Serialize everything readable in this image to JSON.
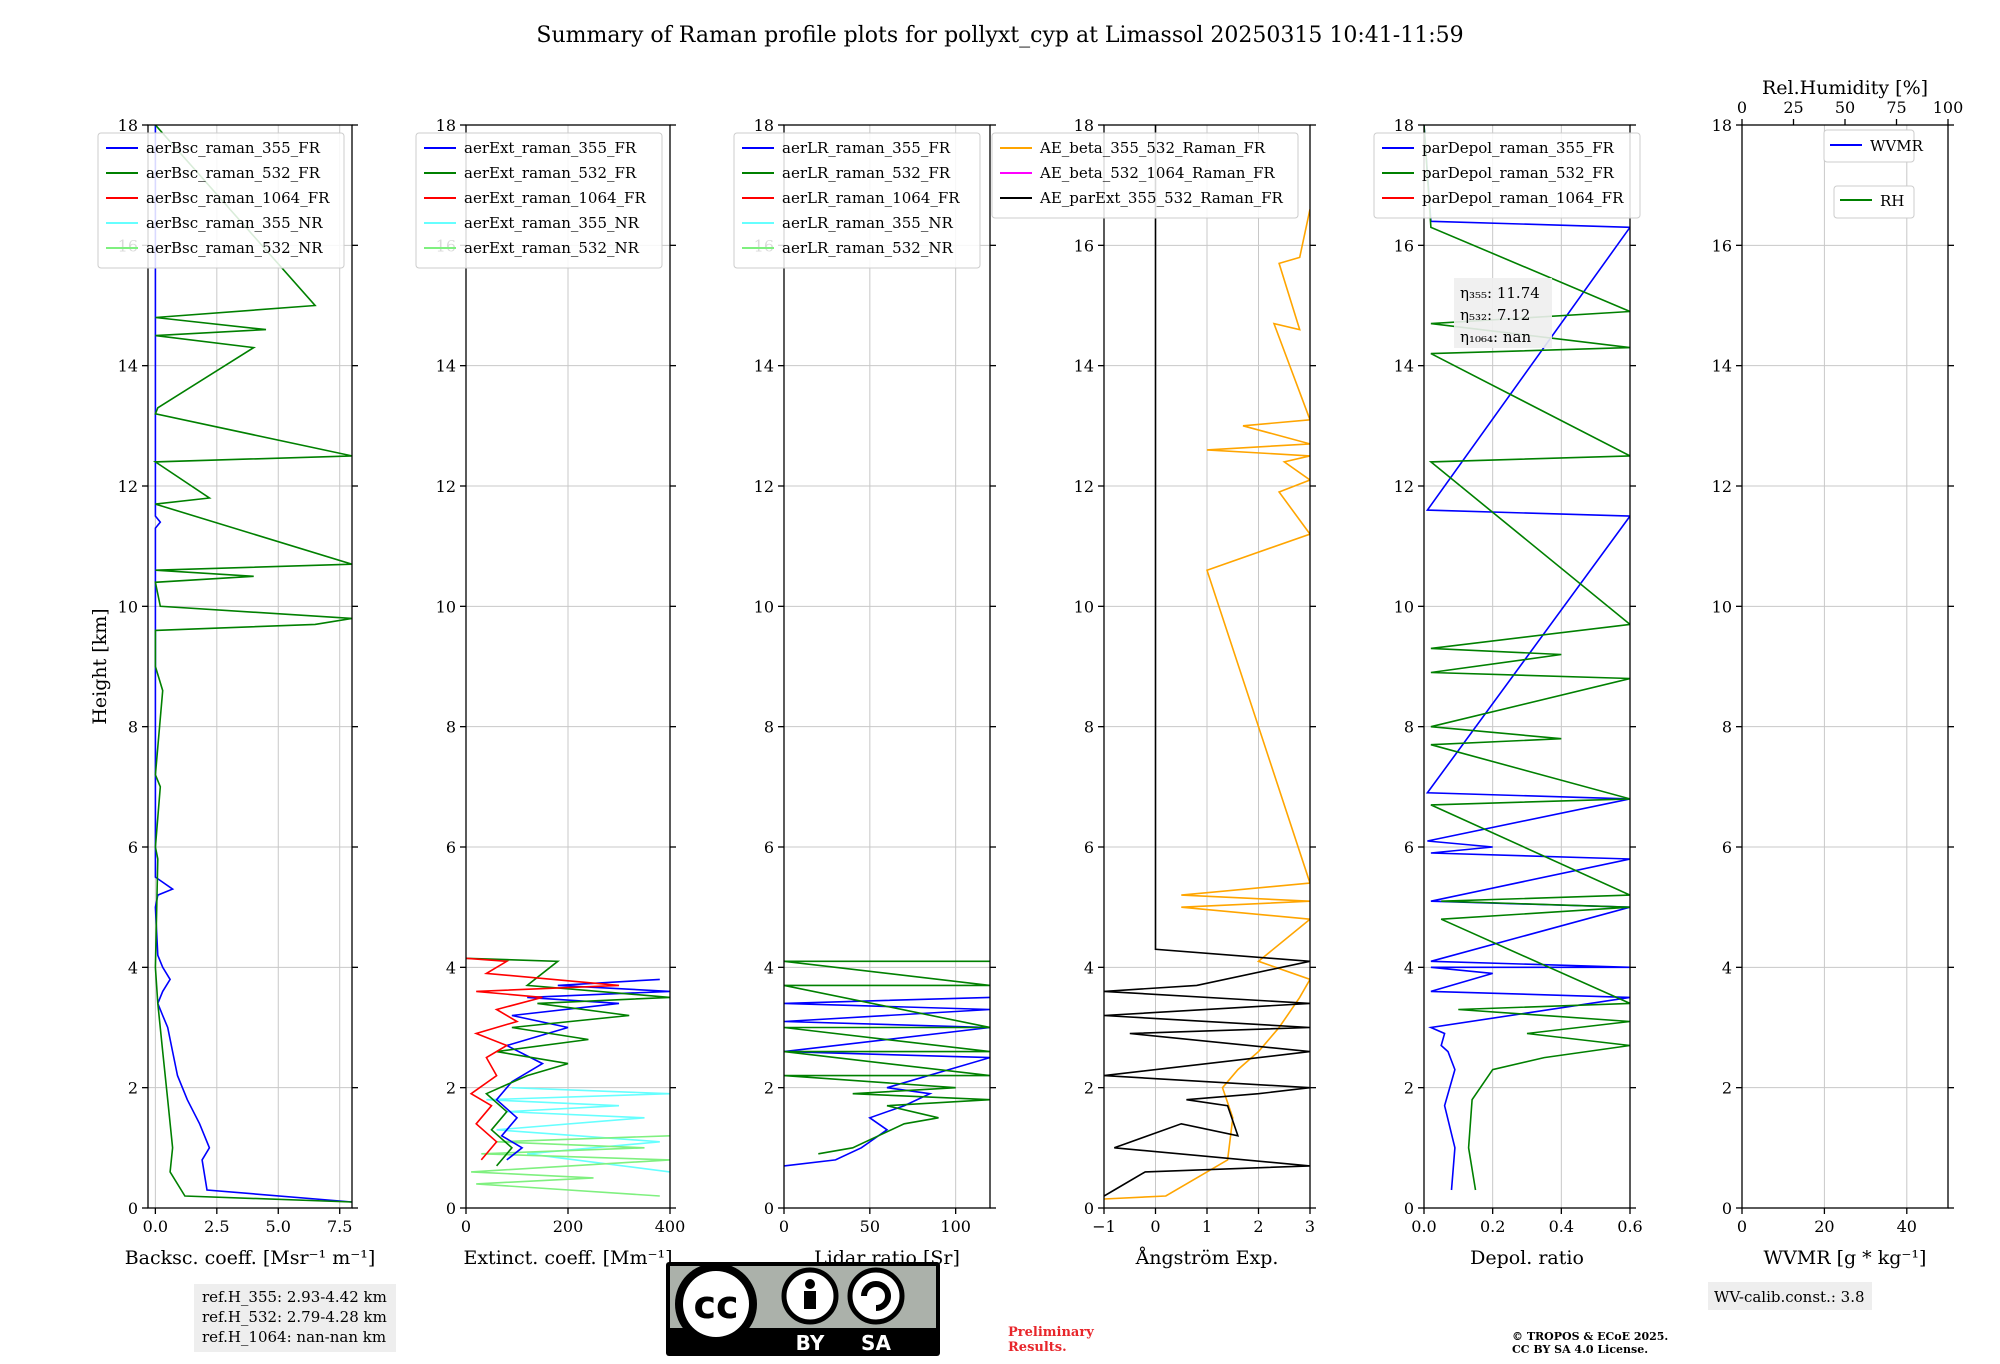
{
  "figure_title": "Summary of Raman profile plots for pollyxt_cyp at Limassol 20250315 10:41-11:59",
  "chart_data": [
    {
      "type": "line",
      "panel": "backscatter",
      "xlabel": "Backsc. coeff. [Msr⁻¹ m⁻¹]",
      "ylabel": "Height [km]",
      "xlim": [
        -0.3,
        8.0
      ],
      "ylim": [
        0,
        18
      ],
      "xticks": [
        "0.0",
        "2.5",
        "5.0",
        "7.5"
      ],
      "xtick_values": [
        0,
        2.5,
        5,
        7.5
      ],
      "legend": [
        "aerBsc_raman_355_FR",
        "aerBsc_raman_532_FR",
        "aerBsc_raman_1064_FR",
        "aerBsc_raman_355_NR",
        "aerBsc_raman_532_NR"
      ],
      "series": [
        {
          "name": "aerBsc_raman_355_FR",
          "color": "#0000ff",
          "x": [
            8.0,
            2.1,
            1.9,
            2.2,
            1.8,
            1.3,
            0.9,
            0.7,
            0.5,
            0.3,
            0.1,
            0.3,
            0.6,
            0.3,
            0.1,
            0.0,
            0.1,
            0.7,
            0.0,
            0.0,
            0.0,
            0.2,
            0.0,
            0.0
          ],
          "y": [
            0.1,
            0.3,
            0.8,
            1.0,
            1.4,
            1.8,
            2.2,
            2.6,
            3.0,
            3.2,
            3.4,
            3.6,
            3.8,
            4.0,
            4.2,
            5.0,
            5.2,
            5.3,
            5.5,
            8.0,
            11.3,
            11.4,
            11.5,
            18
          ]
        },
        {
          "name": "aerBsc_raman_532_FR",
          "color": "#008000",
          "x": [
            8.0,
            1.2,
            0.6,
            0.7,
            0.5,
            0.3,
            0.1,
            0.0,
            0.1,
            0.0,
            0.2,
            0.0,
            0.3,
            0.0,
            0.0,
            6.5,
            8.0,
            0.2,
            0.0,
            4.0,
            0.0,
            8.0,
            0.0,
            2.2,
            0.0,
            8.0,
            0.0,
            0.1,
            4.0,
            0.0,
            4.5,
            0.0,
            6.5,
            0.0
          ],
          "y": [
            0.1,
            0.2,
            0.6,
            1.0,
            1.8,
            2.6,
            3.4,
            4.0,
            5.8,
            6.0,
            7.0,
            7.2,
            8.6,
            9.0,
            9.6,
            9.7,
            9.8,
            10.0,
            10.4,
            10.5,
            10.6,
            10.7,
            11.7,
            11.8,
            12.4,
            12.5,
            13.2,
            13.3,
            14.3,
            14.5,
            14.6,
            14.8,
            15.0,
            18
          ]
        }
      ]
    },
    {
      "type": "line",
      "panel": "extinction",
      "xlabel": "Extinct. coeff. [Mm⁻¹]",
      "xlim": [
        0,
        400
      ],
      "ylim": [
        0,
        18
      ],
      "xticks": [
        "0",
        "200",
        "400"
      ],
      "xtick_values": [
        0,
        200,
        400
      ],
      "legend": [
        "aerExt_raman_355_FR",
        "aerExt_raman_532_FR",
        "aerExt_raman_1064_FR",
        "aerExt_raman_355_NR",
        "aerExt_raman_532_NR"
      ],
      "series": [
        {
          "name": "aerExt_raman_355_NR",
          "color": "#66ffff",
          "x": [
            400,
            120,
            380,
            60,
            350,
            80,
            300,
            40,
            400,
            90
          ],
          "y": [
            0.6,
            0.9,
            1.1,
            1.3,
            1.5,
            1.6,
            1.7,
            1.8,
            1.9,
            2.0
          ]
        },
        {
          "name": "aerExt_raman_532_NR",
          "color": "#7ff07f",
          "x": [
            380,
            20,
            250,
            10,
            400,
            30,
            350,
            60,
            400
          ],
          "y": [
            0.2,
            0.4,
            0.5,
            0.6,
            0.8,
            0.9,
            1.0,
            1.1,
            1.2
          ]
        },
        {
          "name": "aerExt_raman_355_FR",
          "color": "#0000ff",
          "x": [
            80,
            110,
            70,
            100,
            60,
            90,
            150,
            80,
            200,
            90,
            300,
            120,
            400,
            180,
            380
          ],
          "y": [
            0.8,
            1.0,
            1.2,
            1.5,
            1.8,
            2.1,
            2.4,
            2.7,
            3.0,
            3.2,
            3.4,
            3.5,
            3.6,
            3.7,
            3.8
          ]
        },
        {
          "name": "aerExt_raman_532_FR",
          "color": "#008000",
          "x": [
            60,
            90,
            50,
            80,
            40,
            120,
            200,
            60,
            240,
            90,
            320,
            140,
            400,
            120,
            180,
            0
          ],
          "y": [
            0.7,
            1.0,
            1.3,
            1.6,
            1.9,
            2.2,
            2.4,
            2.6,
            2.8,
            3.0,
            3.2,
            3.4,
            3.5,
            3.7,
            4.1,
            4.15
          ]
        },
        {
          "name": "aerExt_raman_1064_FR",
          "color": "#ff0000",
          "x": [
            30,
            60,
            20,
            50,
            10,
            60,
            40,
            80,
            20,
            100,
            60,
            150,
            20,
            300,
            40,
            80,
            0
          ],
          "y": [
            0.8,
            1.1,
            1.4,
            1.7,
            1.9,
            2.2,
            2.5,
            2.7,
            2.9,
            3.1,
            3.3,
            3.5,
            3.6,
            3.7,
            3.9,
            4.1,
            4.15
          ]
        }
      ]
    },
    {
      "type": "line",
      "panel": "lidar_ratio",
      "xlabel": "Lidar ratio [Sr]",
      "xlim": [
        0,
        120
      ],
      "ylim": [
        0,
        18
      ],
      "xticks": [
        "0",
        "50",
        "100"
      ],
      "xtick_values": [
        0,
        50,
        100
      ],
      "legend": [
        "aerLR_raman_355_FR",
        "aerLR_raman_532_FR",
        "aerLR_raman_1064_FR",
        "aerLR_raman_355_NR",
        "aerLR_raman_532_NR"
      ],
      "series": [
        {
          "name": "aerLR_raman_355_FR",
          "color": "#0000ff",
          "x": [
            0,
            30,
            45,
            60,
            50,
            70,
            85,
            60,
            120,
            0,
            120,
            0,
            120,
            0,
            120
          ],
          "y": [
            0.7,
            0.8,
            1.0,
            1.3,
            1.5,
            1.7,
            1.9,
            2.0,
            2.5,
            2.6,
            3.0,
            3.1,
            3.3,
            3.4,
            3.5
          ]
        },
        {
          "name": "aerLR_raman_532_FR",
          "color": "#008000",
          "x": [
            20,
            40,
            55,
            70,
            90,
            60,
            120,
            40,
            100,
            0,
            120,
            0,
            120,
            0,
            120,
            0,
            120,
            0,
            120
          ],
          "y": [
            0.9,
            1.0,
            1.2,
            1.4,
            1.5,
            1.7,
            1.8,
            1.9,
            2.0,
            2.2,
            2.2,
            2.6,
            2.6,
            3.0,
            3.0,
            3.7,
            3.7,
            4.1,
            4.1
          ]
        }
      ]
    },
    {
      "type": "line",
      "panel": "angstrom",
      "xlabel": "Ångström Exp.",
      "xlim": [
        -1,
        3
      ],
      "ylim": [
        0,
        18
      ],
      "xticks": [
        "−1",
        "0",
        "1",
        "2",
        "3"
      ],
      "xtick_values": [
        -1,
        0,
        1,
        2,
        3
      ],
      "legend": [
        "AE_beta_355_532_Raman_FR",
        "AE_beta_532_1064_Raman_FR",
        "AE_parExt_355_532_Raman_FR"
      ],
      "series": [
        {
          "name": "AE_beta_355_532_Raman_FR",
          "color": "#ffa500",
          "x": [
            -1,
            0.2,
            1.4,
            1.5,
            1.3,
            1.6,
            2.0,
            2.4,
            2.8,
            3.0,
            2.0,
            3.0,
            0.5,
            3.0,
            0.5,
            3.0,
            1.0,
            3.0,
            2.4,
            3.0,
            2.5,
            3.0,
            1.0,
            3.0,
            1.7,
            3.0,
            2.3,
            2.8,
            2.4,
            2.8,
            3.0
          ],
          "y": [
            0.15,
            0.2,
            0.8,
            1.5,
            2.0,
            2.3,
            2.6,
            3.0,
            3.5,
            3.8,
            4.1,
            4.8,
            5.0,
            5.1,
            5.2,
            5.4,
            10.6,
            11.2,
            11.9,
            12.1,
            12.4,
            12.5,
            12.6,
            12.7,
            13.0,
            13.1,
            14.7,
            14.6,
            15.7,
            15.8,
            16.6
          ]
        },
        {
          "name": "AE_parExt_355_532_Raman_FR",
          "color": "#000000",
          "x": [
            -1,
            -0.8,
            -0.2,
            3.0,
            -0.8,
            0.5,
            1.6,
            1.4,
            0.6,
            2.0,
            3.0,
            -1.0,
            3.0,
            -0.5,
            3.0,
            -1.0,
            3.0,
            -1.0,
            0.8,
            3.0,
            0.0,
            0.0
          ],
          "y": [
            0.2,
            0.3,
            0.6,
            0.7,
            1.0,
            1.4,
            1.2,
            1.7,
            1.8,
            1.9,
            2.0,
            2.2,
            2.6,
            2.9,
            3.0,
            3.2,
            3.4,
            3.6,
            3.7,
            4.1,
            4.3,
            18
          ]
        }
      ]
    },
    {
      "type": "line",
      "panel": "depolarization",
      "xlabel": "Depol. ratio",
      "xlim": [
        0,
        0.6
      ],
      "ylim": [
        0,
        18
      ],
      "xticks": [
        "0.0",
        "0.2",
        "0.4",
        "0.6"
      ],
      "xtick_values": [
        0,
        0.2,
        0.4,
        0.6
      ],
      "legend": [
        "parDepol_raman_355_FR",
        "parDepol_raman_532_FR",
        "parDepol_raman_1064_FR"
      ],
      "annotation": [
        "η₃₅₅: 11.74",
        "η₅₃₂: 7.12",
        "η₁₀₆₄: nan"
      ],
      "series": [
        {
          "name": "parDepol_raman_355_FR",
          "color": "#0000ff",
          "x": [
            0.08,
            0.09,
            0.06,
            0.09,
            0.07,
            0.05,
            0.06,
            0.02,
            0.6,
            0.02,
            0.2,
            0.02,
            0.6,
            0.02,
            0.6,
            0.02,
            0.6,
            0.02,
            0.2,
            0.01,
            0.6,
            0.01,
            0.6,
            0.01,
            0.6,
            0.02,
            0.0
          ],
          "y": [
            0.3,
            1.0,
            1.7,
            2.3,
            2.6,
            2.7,
            2.9,
            3.0,
            3.5,
            3.6,
            3.9,
            4.0,
            4.0,
            4.1,
            5.0,
            5.1,
            5.8,
            5.9,
            6.0,
            6.1,
            6.8,
            6.9,
            11.5,
            11.6,
            16.3,
            16.4,
            18
          ]
        },
        {
          "name": "parDepol_raman_532_FR",
          "color": "#008000",
          "x": [
            0.15,
            0.13,
            0.14,
            0.2,
            0.35,
            0.6,
            0.3,
            0.6,
            0.1,
            0.6,
            0.05,
            0.6,
            0.05,
            0.6,
            0.02,
            0.6,
            0.02,
            0.4,
            0.02,
            0.6,
            0.02,
            0.4,
            0.02,
            0.6,
            0.02,
            0.6,
            0.02,
            0.6,
            0.02,
            0.6,
            0.02,
            0.0
          ],
          "y": [
            0.3,
            1.0,
            1.8,
            2.3,
            2.5,
            2.7,
            2.9,
            3.1,
            3.3,
            3.4,
            4.8,
            5.0,
            5.1,
            5.2,
            6.7,
            6.8,
            7.7,
            7.8,
            8.0,
            8.8,
            8.9,
            9.2,
            9.3,
            9.7,
            12.4,
            12.5,
            14.2,
            14.3,
            14.7,
            14.9,
            16.3,
            18
          ]
        }
      ]
    },
    {
      "type": "line",
      "panel": "water_vapor",
      "xlabel": "WVMR [g * kg⁻¹]",
      "top_xlabel": "Rel.Humidity [%]",
      "xlim": [
        0,
        50
      ],
      "ylim": [
        0,
        18
      ],
      "xticks": [
        "0",
        "20",
        "40"
      ],
      "xtick_values": [
        0,
        20,
        40
      ],
      "top_xticks": [
        "0",
        "25",
        "50",
        "75",
        "100"
      ],
      "top_xtick_values": [
        0,
        25,
        50,
        75,
        100
      ],
      "legend_wvmr": "WVMR",
      "legend_rh": "RH",
      "series": []
    }
  ],
  "ytick_labels": [
    "0",
    "2",
    "4",
    "6",
    "8",
    "10",
    "12",
    "14",
    "16",
    "18"
  ],
  "ytick_values": [
    0,
    2,
    4,
    6,
    8,
    10,
    12,
    14,
    16,
    18
  ],
  "ref_heights": [
    "ref.H_355: 2.93-4.42 km",
    "ref.H_532: 2.79-4.28 km",
    "ref.H_1064: nan-nan km"
  ],
  "wv_calib": "WV-calib.const.: 3.8",
  "preliminary": [
    "Preliminary",
    "Results."
  ],
  "copyright": [
    "© TROPOS & ECoE 2025.",
    "CC BY SA 4.0 License."
  ],
  "license_badge": {
    "cc": "cc",
    "by": "BY",
    "sa": "SA"
  },
  "colors": {
    "blue": "#0000ff",
    "green": "#008000",
    "red": "#ff0000",
    "cyan": "#66ffff",
    "lightgreen": "#7ff07f",
    "orange": "#ffa500",
    "magenta": "#ff00ff",
    "black": "#000000",
    "grid": "#c8c8c8",
    "infobox": "#eeeeee"
  }
}
